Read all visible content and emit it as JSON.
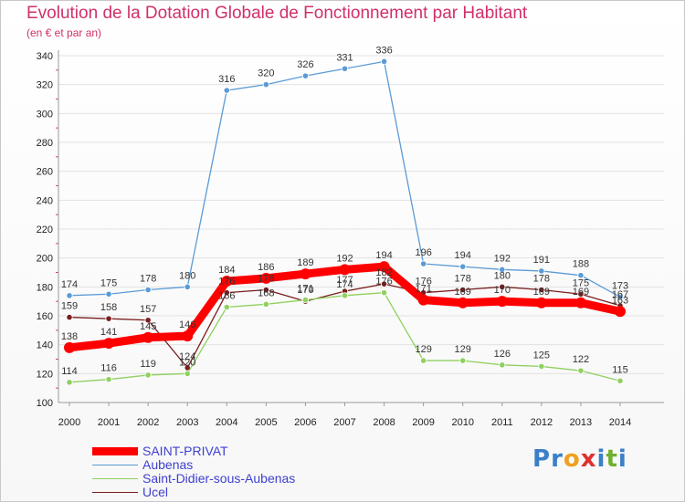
{
  "chart_data": {
    "type": "line",
    "title": "Evolution de la Dotation Globale de Fonctionnement par Habitant",
    "subtitle": "(en € et par an)",
    "categories": [
      "2000",
      "2001",
      "2002",
      "2003",
      "2004",
      "2005",
      "2006",
      "2007",
      "2008",
      "2009",
      "2010",
      "2011",
      "2012",
      "2013",
      "2014"
    ],
    "y_ticks": [
      100,
      120,
      140,
      160,
      180,
      200,
      220,
      240,
      260,
      280,
      300,
      320,
      340
    ],
    "ylim": [
      100,
      340
    ],
    "grid": "horizontal",
    "legend_position": "bottom-left",
    "series": [
      {
        "name": "Ucel",
        "color": "#7a1e1e",
        "values": [
          159,
          158,
          157,
          124,
          176,
          178,
          170,
          177,
          182,
          176,
          178,
          180,
          178,
          175,
          167
        ],
        "labels": [
          "159",
          "158",
          "157",
          "124",
          "176",
          "178",
          "170",
          "177",
          "182",
          "176",
          "178",
          "180",
          "178",
          "175",
          "167"
        ]
      },
      {
        "name": "Saint-Didier-sous-Aubenas",
        "color": "#90d060",
        "values": [
          114,
          116,
          119,
          120,
          166,
          168,
          171,
          174,
          176,
          129,
          129,
          126,
          125,
          122,
          115
        ],
        "labels": [
          "114",
          "116",
          "119",
          "120",
          "166",
          "168",
          "171",
          "174",
          "176",
          "129",
          "129",
          "126",
          "125",
          "122",
          "115"
        ]
      },
      {
        "name": "Aubenas",
        "color": "#5b9bd5",
        "values": [
          174,
          175,
          178,
          180,
          316,
          320,
          326,
          331,
          336,
          196,
          194,
          192,
          191,
          188,
          173
        ],
        "labels": [
          "174",
          "175",
          "178",
          "180",
          "316",
          "320",
          "326",
          "331",
          "336",
          "196",
          "194",
          "192",
          "191",
          "188",
          "173"
        ]
      },
      {
        "name": "SAINT-PRIVAT",
        "color": "#ff0000",
        "values": [
          138,
          141,
          145,
          146,
          184,
          186,
          189,
          192,
          194,
          171,
          169,
          170,
          169,
          169,
          163
        ],
        "labels": [
          "138",
          "141",
          "145",
          "146",
          "184",
          "186",
          "189",
          "192",
          "194",
          "171",
          "169",
          "170",
          "169",
          "169",
          "163"
        ]
      }
    ]
  },
  "legend": {
    "items": [
      {
        "label": "SAINT-PRIVAT",
        "color": "#ff0000"
      },
      {
        "label": "Aubenas",
        "color": "#5b9bd5"
      },
      {
        "label": "Saint-Didier-sous-Aubenas",
        "color": "#90d060"
      },
      {
        "label": "Ucel",
        "color": "#7a1e1e"
      }
    ],
    "text_color": "#4040d0"
  },
  "logo": {
    "letters": [
      "P",
      "r",
      "o",
      "x",
      "i",
      "t",
      "i"
    ],
    "colors": [
      "#3a7fc8",
      "#3a7fc8",
      "#f0a020",
      "#e03030",
      "#3a7fc8",
      "#70b030",
      "#3a7fc8"
    ]
  }
}
